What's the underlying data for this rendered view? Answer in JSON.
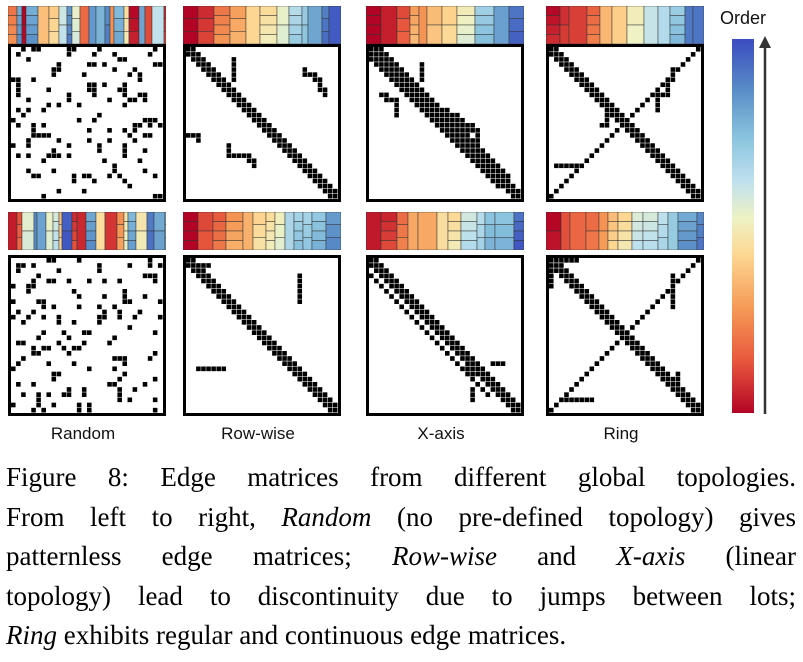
{
  "columns": [
    {
      "key": "random",
      "label": "Random"
    },
    {
      "key": "rowwise",
      "label": "Row-wise"
    },
    {
      "key": "xaxis",
      "label": "X-axis"
    },
    {
      "key": "ring",
      "label": "Ring"
    }
  ],
  "colorbar": {
    "label": "Order",
    "low_color": "#b40426",
    "high_color": "#3b4cc0"
  },
  "caption": {
    "l1": "Figure 8: Edge matrices from different global topologies.",
    "l2a": "From left to right, ",
    "l2_random": "Random",
    "l2b": " (no pre-defined topology) gives",
    "l3a": "patternless edge matrices; ",
    "l3_rowwise": "Row-wise",
    "l3b": " and ",
    "l3_xaxis": "X-axis",
    "l3c": " (linear",
    "l4": "topology) lead to discontinuity due to jumps between lots;",
    "l5_ring": "Ring",
    "l5b": " exhibits regular and continuous edge matrices."
  }
}
